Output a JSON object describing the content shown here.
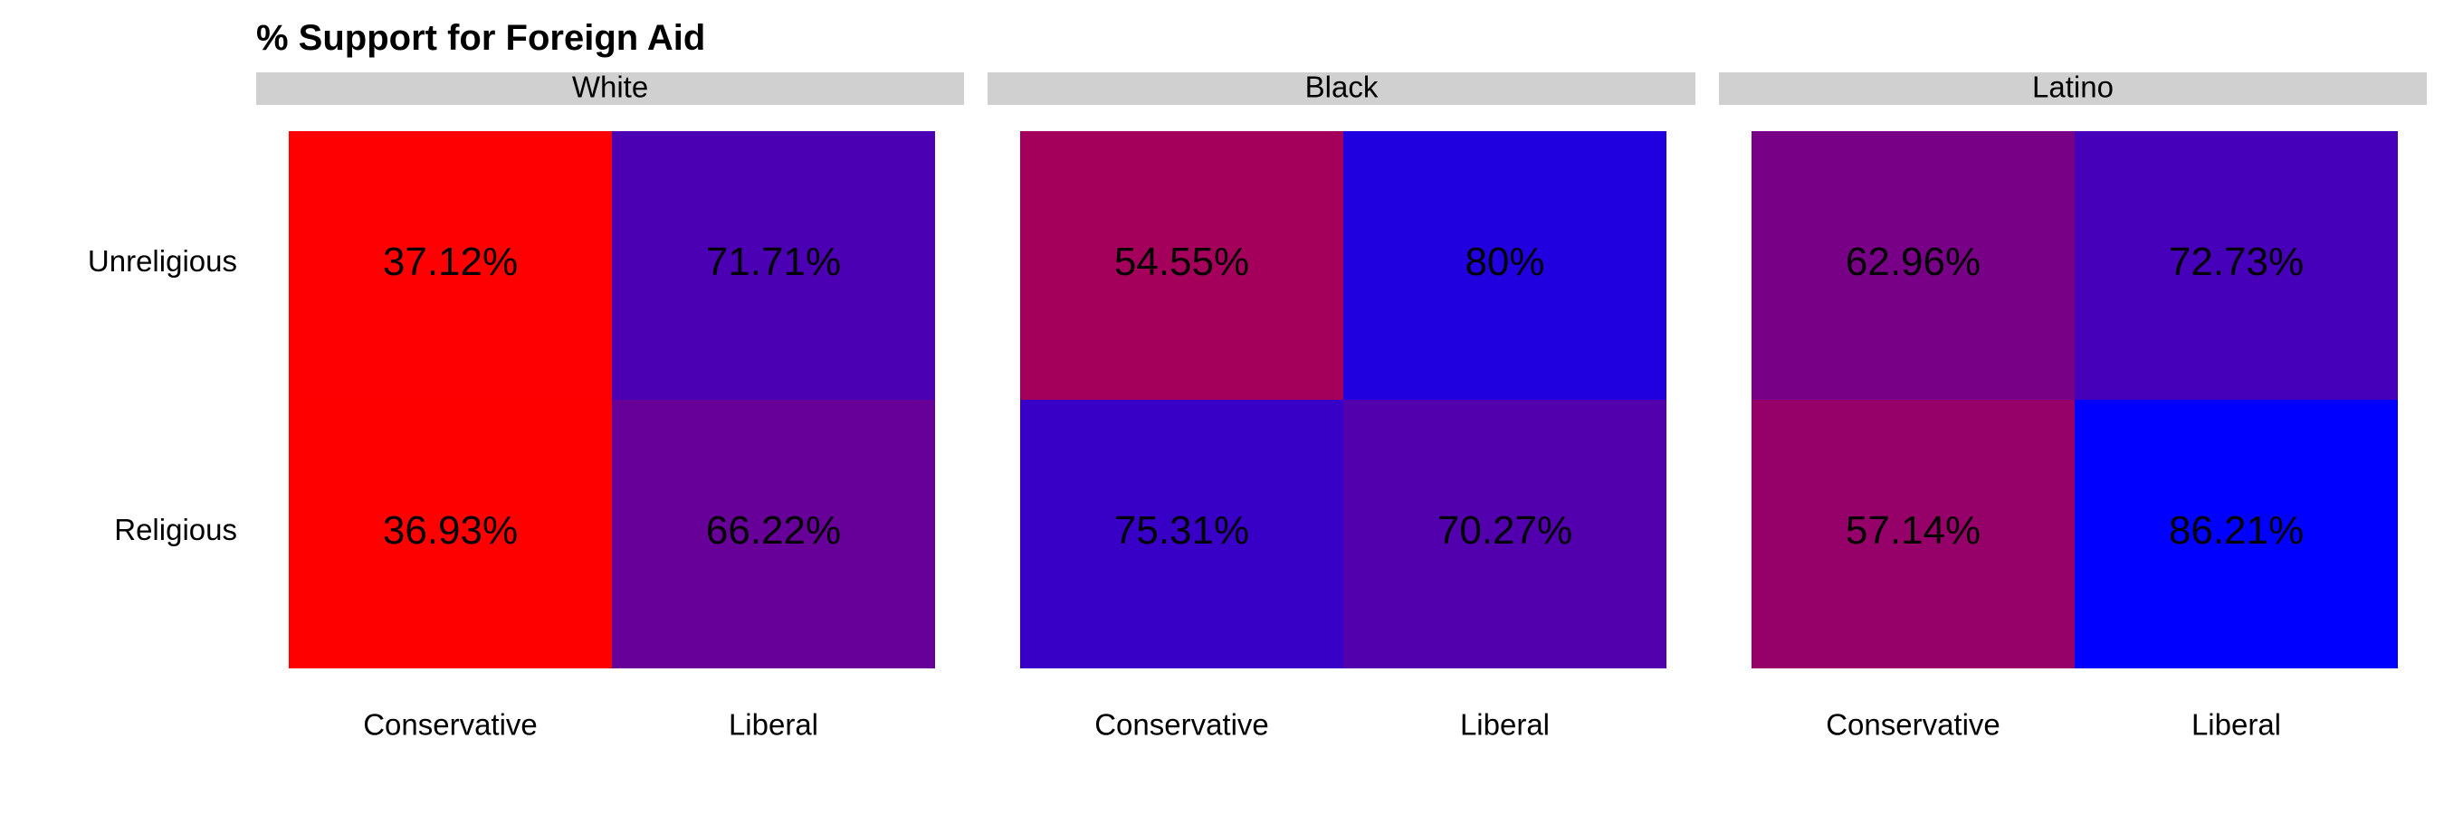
{
  "chart_data": {
    "type": "heatmap",
    "title": "% Support for Foreign Aid",
    "facets": [
      "White",
      "Black",
      "Latino"
    ],
    "x_categories": [
      "Conservative",
      "Liberal"
    ],
    "y_categories": [
      "Unreligious",
      "Religious"
    ],
    "cells": [
      {
        "facet": "White",
        "x": "Conservative",
        "y": "Unreligious",
        "value": 37.12,
        "label": "37.12%"
      },
      {
        "facet": "White",
        "x": "Liberal",
        "y": "Unreligious",
        "value": 71.71,
        "label": "71.71%"
      },
      {
        "facet": "White",
        "x": "Conservative",
        "y": "Religious",
        "value": 36.93,
        "label": "36.93%"
      },
      {
        "facet": "White",
        "x": "Liberal",
        "y": "Religious",
        "value": 66.22,
        "label": "66.22%"
      },
      {
        "facet": "Black",
        "x": "Conservative",
        "y": "Unreligious",
        "value": 54.55,
        "label": "54.55%"
      },
      {
        "facet": "Black",
        "x": "Liberal",
        "y": "Unreligious",
        "value": 80,
        "label": "80%"
      },
      {
        "facet": "Black",
        "x": "Conservative",
        "y": "Religious",
        "value": 75.31,
        "label": "75.31%"
      },
      {
        "facet": "Black",
        "x": "Liberal",
        "y": "Religious",
        "value": 70.27,
        "label": "70.27%"
      },
      {
        "facet": "Latino",
        "x": "Conservative",
        "y": "Unreligious",
        "value": 62.96,
        "label": "62.96%"
      },
      {
        "facet": "Latino",
        "x": "Liberal",
        "y": "Unreligious",
        "value": 72.73,
        "label": "72.73%"
      },
      {
        "facet": "Latino",
        "x": "Conservative",
        "y": "Religious",
        "value": 57.14,
        "label": "57.14%"
      },
      {
        "facet": "Latino",
        "x": "Liberal",
        "y": "Religious",
        "value": 86.21,
        "label": "86.21%"
      }
    ],
    "color_scale": {
      "low": "#ff0000",
      "high": "#0000ff",
      "domain": [
        36.93,
        86.21
      ]
    },
    "strip_color": "#d0d0d0",
    "legend": "none",
    "grid": false
  }
}
